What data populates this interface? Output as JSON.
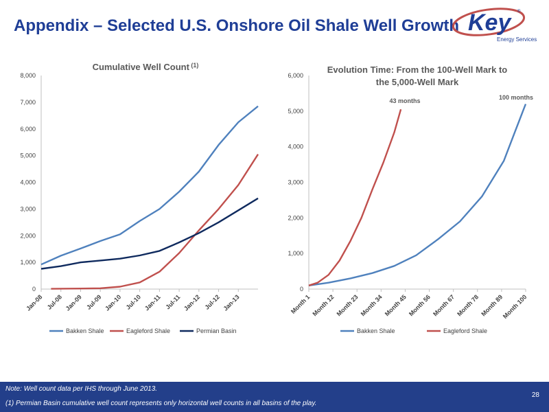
{
  "page": {
    "title": "Appendix – Selected U.S. Onshore Oil Shale Well Growth",
    "logo_text": "Key",
    "logo_sub": "Energy Services",
    "logo_reg": "®",
    "note1": "Note: Well count data per IHS through June 2013.",
    "note2": "(1) Permian Basin cumulative well count represents only horizontal well counts in all basins of the play.",
    "page_number": "28",
    "brand_color": "#1f3e96"
  },
  "chart_data": [
    {
      "type": "line",
      "title": "Cumulative Well Count",
      "title_sup": "(1)",
      "ylim": [
        0,
        8000
      ],
      "yticks": [
        "0",
        "1,000",
        "2,000",
        "3,000",
        "4,000",
        "5,000",
        "6,000",
        "7,000",
        "8,000"
      ],
      "xtick_labels": [
        "Jan-08",
        "Jul-08",
        "Jan-09",
        "Jul-09",
        "Jan-10",
        "Jul-10",
        "Jan-11",
        "Jul-11",
        "Jan-12",
        "Jul-12",
        "Jan-13"
      ],
      "x_months": [
        0,
        66
      ],
      "legend": "bottom",
      "series": [
        {
          "name": "Bakken Shale",
          "color": "#4f81bd",
          "x": [
            0,
            6,
            12,
            18,
            24,
            30,
            36,
            42,
            48,
            54,
            60,
            66
          ],
          "values": [
            920,
            1250,
            1520,
            1800,
            2050,
            2550,
            3000,
            3650,
            4400,
            5400,
            6250,
            6850
          ]
        },
        {
          "name": "Eagleford Shale",
          "color": "#c0504d",
          "x": [
            3,
            12,
            18,
            24,
            30,
            36,
            42,
            48,
            54,
            60,
            66
          ],
          "values": [
            10,
            20,
            30,
            90,
            250,
            650,
            1350,
            2200,
            3000,
            3900,
            5050
          ]
        },
        {
          "name": "Permian Basin",
          "color": "#0f2a5e",
          "x": [
            0,
            6,
            12,
            18,
            24,
            30,
            36,
            42,
            48,
            54,
            60,
            66
          ],
          "values": [
            760,
            860,
            1000,
            1070,
            1140,
            1260,
            1430,
            1750,
            2100,
            2500,
            2950,
            3400
          ]
        }
      ]
    },
    {
      "type": "line",
      "title_lines": [
        "Evolution Time: From the 100-Well Mark to",
        "the 5,000-Well Mark"
      ],
      "ylim": [
        0,
        6000
      ],
      "yticks": [
        "0",
        "1,000",
        "2,000",
        "3,000",
        "4,000",
        "5,000",
        "6,000"
      ],
      "xtick_labels": [
        "Month 1",
        "Month 12",
        "Month 23",
        "Month 34",
        "Month 45",
        "Month 56",
        "Month 67",
        "Month 78",
        "Month 89",
        "Month 100"
      ],
      "x_range": [
        1,
        100
      ],
      "legend": "bottom",
      "annotations": [
        "43 months",
        "100 months"
      ],
      "series": [
        {
          "name": "Bakken Shale",
          "color": "#4f81bd",
          "x": [
            1,
            10,
            20,
            30,
            40,
            50,
            60,
            70,
            80,
            90,
            95,
            100
          ],
          "values": [
            100,
            180,
            300,
            450,
            650,
            950,
            1400,
            1900,
            2600,
            3600,
            4400,
            5200
          ]
        },
        {
          "name": "Eagleford Shale",
          "color": "#c0504d",
          "x": [
            1,
            5,
            10,
            15,
            20,
            25,
            30,
            35,
            40,
            43
          ],
          "values": [
            100,
            180,
            400,
            800,
            1350,
            2000,
            2800,
            3550,
            4400,
            5050
          ]
        }
      ]
    }
  ]
}
